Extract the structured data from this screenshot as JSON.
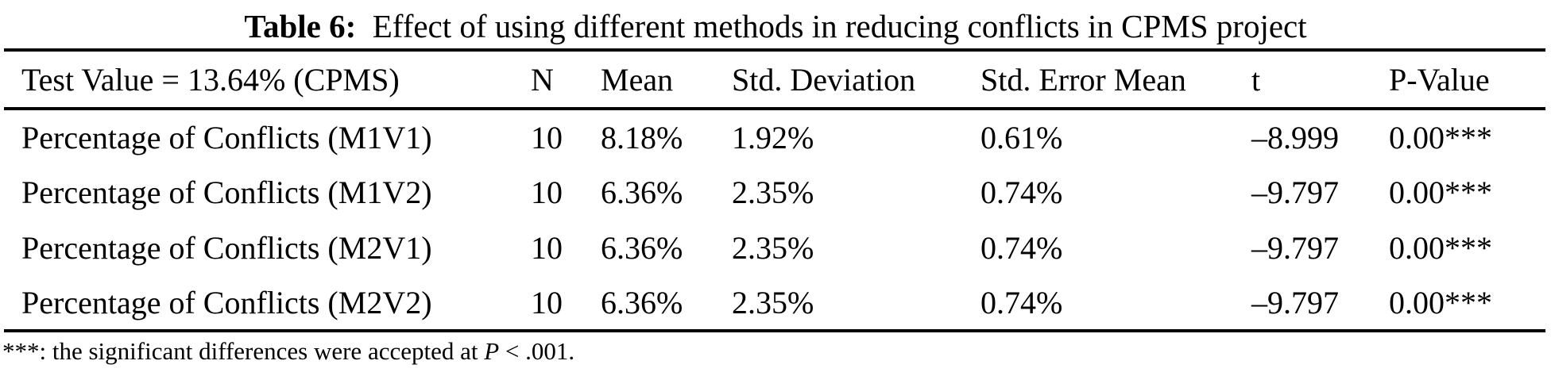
{
  "colors": {
    "text": "#000000",
    "background": "#ffffff",
    "rule": "#000000"
  },
  "caption": {
    "label": "Table 6:",
    "text": "Effect of using different methods in reducing conflicts in CPMS project"
  },
  "table": {
    "columns": [
      "Test Value = 13.64% (CPMS)",
      "N",
      "Mean",
      "Std. Deviation",
      "Std. Error Mean",
      "t",
      "P-Value"
    ],
    "rows": [
      [
        "Percentage of Conflicts (M1V1)",
        "10",
        "8.18%",
        "1.92%",
        "0.61%",
        "–8.999",
        "0.00***"
      ],
      [
        "Percentage of Conflicts (M1V2)",
        "10",
        "6.36%",
        "2.35%",
        "0.74%",
        "–9.797",
        "0.00***"
      ],
      [
        "Percentage of Conflicts (M2V1)",
        "10",
        "6.36%",
        "2.35%",
        "0.74%",
        "–9.797",
        "0.00***"
      ],
      [
        "Percentage of Conflicts (M2V2)",
        "10",
        "6.36%",
        "2.35%",
        "0.74%",
        "–9.797",
        "0.00***"
      ]
    ]
  },
  "footnote": {
    "marker": "***",
    "before_p": ": the significant differences were accepted at ",
    "p_symbol": "P",
    "after_p": " < .001."
  }
}
